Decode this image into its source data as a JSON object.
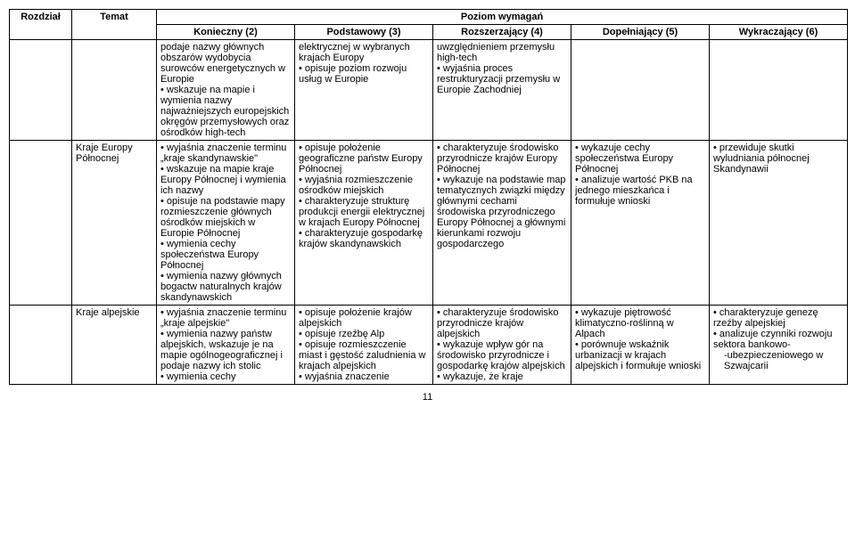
{
  "table": {
    "headers": {
      "rozdzial": "Rozdział",
      "temat": "Temat",
      "poziom": "Poziom wymagań",
      "levels": [
        "Konieczny (2)",
        "Podstawowy (3)",
        "Rozszerzający (4)",
        "Dopełniający (5)",
        "Wykraczający (6)"
      ]
    },
    "rows": [
      {
        "rozdzial": "",
        "temat": "",
        "cells": [
          "podaje nazwy głównych obszarów wydobycia surowców energetycznych w Europie|• wskazuje na mapie i wymienia nazwy najważniejszych europejskich okręgów przemysłowych oraz ośrodków high-tech",
          "elektrycznej w wybranych krajach Europy|• opisuje poziom rozwoju usług w Europie",
          "uwzględnieniem przemysłu high-tech|• wyjaśnia proces restrukturyzacji przemysłu w Europie Zachodniej",
          "",
          ""
        ]
      },
      {
        "rozdzial": "",
        "temat": "Kraje Europy Północnej",
        "cells": [
          "• wyjaśnia znaczenie terminu „kraje skandynawskie\"|• wskazuje na mapie kraje Europy Północnej i wymienia ich nazwy|• opisuje na podstawie mapy rozmieszczenie głównych ośrodków miejskich w Europie Północnej|• wymienia cechy społeczeństwa Europy Północnej|• wymienia nazwy głównych bogactw naturalnych krajów skandynawskich",
          "• opisuje położenie geograficzne państw Europy Północnej|• wyjaśnia rozmieszczenie ośrodków miejskich|• charakteryzuje strukturę produkcji energii elektrycznej w krajach Europy Północnej|• charakteryzuje gospodarkę krajów skandynawskich",
          "• charakteryzuje środowisko przyrodnicze krajów Europy Północnej|• wykazuje na podstawie map tematycznych związki między głównymi cechami środowiska przyrodniczego Europy Północnej a głównymi kierunkami rozwoju gospodarczego",
          "• wykazuje cechy społeczeństwa Europy Północnej|• analizuje wartość PKB na jednego mieszkańca i formułuje wnioski",
          "• przewiduje skutki wyludniania północnej Skandynawii"
        ]
      },
      {
        "rozdzial": "",
        "temat": "Kraje alpejskie",
        "cells": [
          "• wyjaśnia znaczenie terminu „kraje alpejskie\"|• wymienia nazwy państw alpejskich, wskazuje je na mapie ogólnogeograficznej i podaje nazwy ich stolic|• wymienia cechy",
          "• opisuje położenie krajów alpejskich|• opisuje rzeźbę Alp|• opisuje rozmieszczenie miast i gęstość zaludnienia w krajach alpejskich|• wyjaśnia znaczenie",
          "• charakteryzuje środowisko przyrodnicze krajów alpejskich|• wykazuje wpływ gór na środowisko przyrodnicze i gospodarkę krajów alpejskich|• wykazuje, że kraje",
          "• wykazuje piętrowość klimatyczno-roślinną w Alpach|• porównuje wskaźnik urbanizacji w krajach alpejskich i formułuje wnioski",
          "• charakteryzuje genezę rzeźby alpejskiej|• analizuje czynniki rozwoju sektora bankowo-|-ubezpieczeniowego w Szwajcarii"
        ]
      }
    ],
    "column_widths": [
      "70px",
      "95px",
      "155px",
      "155px",
      "155px",
      "155px",
      "155px"
    ]
  },
  "page_number": "11"
}
